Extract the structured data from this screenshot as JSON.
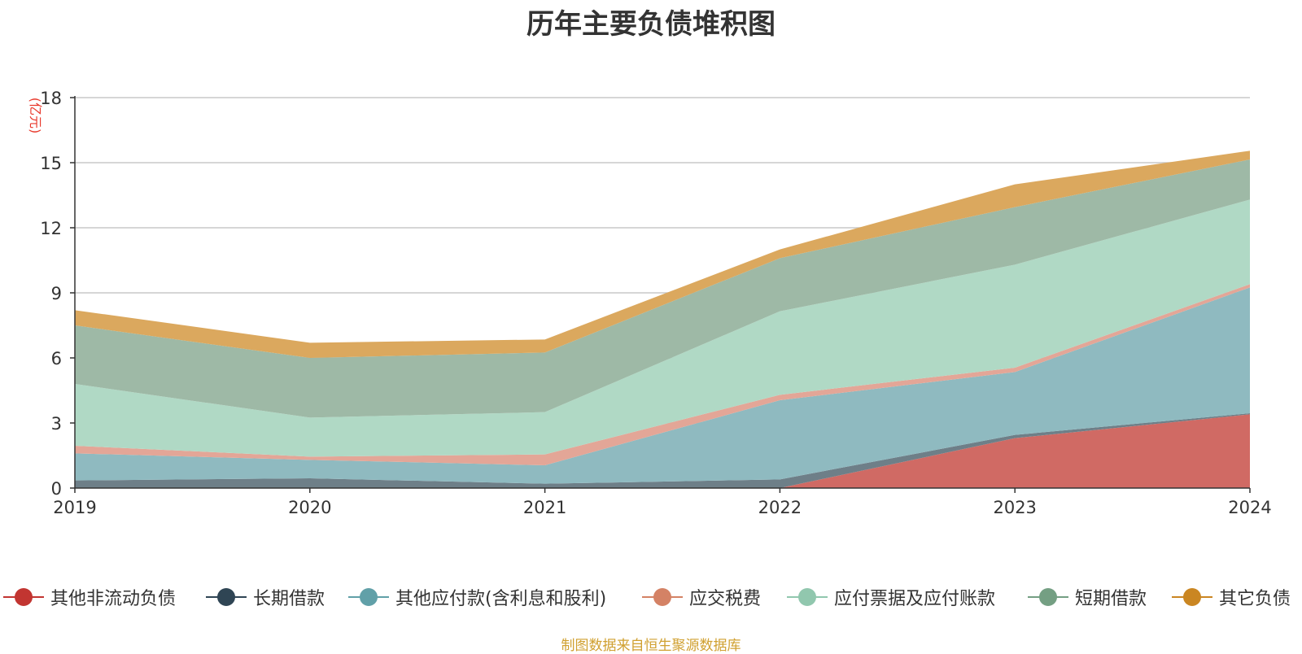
{
  "chart_data": {
    "type": "area",
    "stacked": true,
    "title": "历年主要负债堆积图",
    "ylabel": "(亿元)",
    "xlabel": "",
    "categories": [
      "2019",
      "2020",
      "2021",
      "2022",
      "2023",
      "2024"
    ],
    "ylim": [
      0,
      18
    ],
    "yticks": [
      0,
      3,
      6,
      9,
      12,
      15,
      18
    ],
    "grid": true,
    "legend_position": "bottom",
    "series": [
      {
        "name": "其他非流动负债",
        "color": "#d06a64",
        "values": [
          0,
          0,
          0,
          0,
          2.3,
          3.4
        ]
      },
      {
        "name": "长期借款",
        "color": "#6e7f88",
        "values": [
          0.35,
          0.45,
          0.2,
          0.4,
          0.15,
          0.05
        ]
      },
      {
        "name": "其他应付款(含利息和股利)",
        "color": "#8fbac0",
        "values": [
          1.25,
          0.85,
          0.85,
          3.65,
          2.9,
          5.8
        ]
      },
      {
        "name": "应交税费",
        "color": "#e3a697",
        "values": [
          0.35,
          0.15,
          0.5,
          0.25,
          0.2,
          0.15
        ]
      },
      {
        "name": "应付票据及应付账款",
        "color": "#b0d9c5",
        "values": [
          2.85,
          1.8,
          1.95,
          3.85,
          4.75,
          3.9
        ]
      },
      {
        "name": "短期借款",
        "color": "#9eb9a6",
        "values": [
          2.7,
          2.75,
          2.75,
          2.45,
          2.65,
          1.85
        ]
      },
      {
        "name": "其它负债",
        "color": "#dba85e",
        "values": [
          0.7,
          0.7,
          0.6,
          0.4,
          1.05,
          0.4
        ]
      }
    ],
    "legend_colors": [
      "#c23531",
      "#2f4554",
      "#61a0a8",
      "#d48265",
      "#91c7ae",
      "#749f83",
      "#ca8622"
    ],
    "source_note": "制图数据来自恒生聚源数据库",
    "source_note_color": "#d0a030"
  }
}
